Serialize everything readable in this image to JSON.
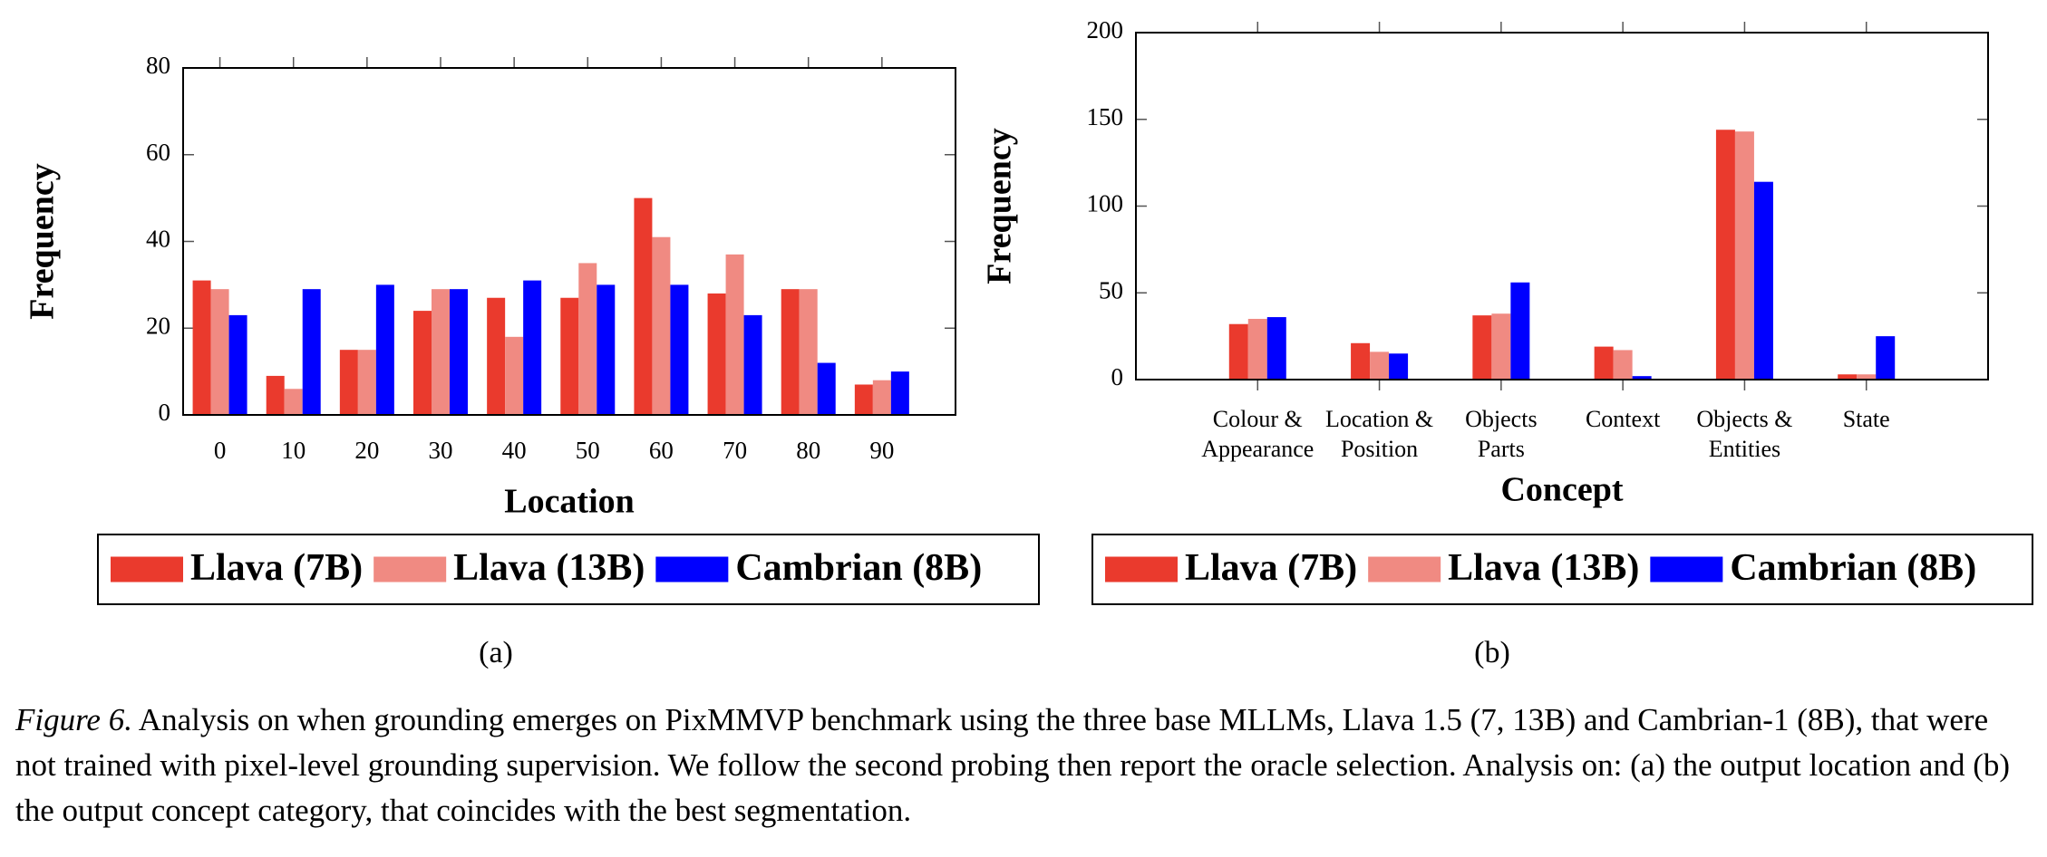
{
  "chart_data": [
    {
      "type": "bar",
      "label": "(a)",
      "xlabel": "Location",
      "ylabel": "Frequency",
      "x": [
        0,
        10,
        20,
        30,
        40,
        50,
        60,
        70,
        80,
        90
      ],
      "xlim": [
        -5,
        100
      ],
      "xticks": [
        0,
        10,
        20,
        30,
        40,
        50,
        60,
        70,
        80,
        90
      ],
      "ylim": [
        0,
        80
      ],
      "yticks": [
        0,
        20,
        40,
        60,
        80
      ],
      "series": [
        {
          "name": "Llava (7B)",
          "color": "#ea3a2d",
          "values": [
            31,
            9,
            15,
            24,
            27,
            27,
            50,
            28,
            29,
            7
          ]
        },
        {
          "name": "Llava (13B)",
          "color": "#f08a82",
          "values": [
            29,
            6,
            15,
            29,
            18,
            35,
            41,
            37,
            29,
            8
          ]
        },
        {
          "name": "Cambrian (8B)",
          "color": "#0000ff",
          "values": [
            23,
            29,
            30,
            29,
            31,
            30,
            30,
            23,
            12,
            10
          ]
        }
      ]
    },
    {
      "type": "bar",
      "label": "(b)",
      "xlabel": "Concept",
      "ylabel": "Frequency",
      "categories": [
        [
          "Colour &",
          "Appearance"
        ],
        [
          "Location &",
          "Position"
        ],
        [
          "Objects",
          "Parts"
        ],
        [
          "Context"
        ],
        [
          "Objects &",
          "Entities"
        ],
        [
          "State"
        ]
      ],
      "ylim": [
        0,
        200
      ],
      "yticks": [
        0,
        50,
        100,
        150,
        200
      ],
      "series": [
        {
          "name": "Llava (7B)",
          "color": "#ea3a2d",
          "values": [
            32,
            21,
            37,
            19,
            144,
            3
          ]
        },
        {
          "name": "Llava (13B)",
          "color": "#f08a82",
          "values": [
            35,
            16,
            38,
            17,
            143,
            3
          ]
        },
        {
          "name": "Cambrian (8B)",
          "color": "#0000ff",
          "values": [
            36,
            15,
            56,
            2,
            114,
            25
          ]
        }
      ]
    }
  ],
  "caption": {
    "figure": "Figure 6.",
    "text": "Analysis on when grounding emerges on PixMMVP benchmark using the three base MLLMs, Llava 1.5 (7, 13B) and Cambrian-1 (8B), that were not trained with pixel-level grounding supervision. We follow the second probing then report the oracle selection. Analysis on: (a) the output location and (b) the output concept category, that coincides with the best segmentation."
  }
}
